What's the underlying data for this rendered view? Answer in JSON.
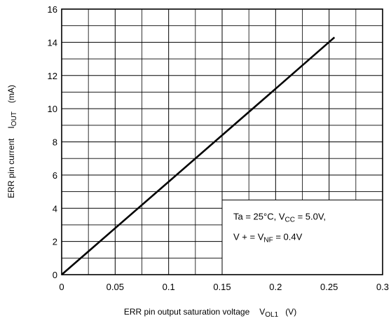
{
  "chart_data": {
    "type": "line",
    "xlabel": {
      "main": "ERR pin output saturation voltage",
      "symbol": "V",
      "subscript": "OL1",
      "unit": "(V)"
    },
    "ylabel": {
      "main": "ERR pin current",
      "symbol": "I",
      "subscript": "OUT",
      "unit": "(mA)"
    },
    "x_ticks": [
      "0",
      "0.05",
      "0.1",
      "0.15",
      "0.2",
      "0.25",
      "0.3"
    ],
    "y_ticks": [
      "0",
      "2",
      "4",
      "6",
      "8",
      "10",
      "12",
      "14",
      "16"
    ],
    "xlim": [
      0,
      0.3
    ],
    "ylim": [
      0,
      16
    ],
    "grid": true,
    "series": [
      {
        "x": [
          0,
          0.05,
          0.1,
          0.15,
          0.2,
          0.255
        ],
        "y": [
          0,
          2.8,
          5.6,
          8.4,
          11.2,
          14.3
        ]
      }
    ],
    "annotation": {
      "line1": [
        {
          "t": "Ta = 25°C,  V"
        },
        {
          "t": "CC",
          "sub": true
        },
        {
          "t": " = 5.0V,"
        }
      ],
      "line2": [
        {
          "t": "V + = V"
        },
        {
          "t": "NF",
          "sub": true
        },
        {
          "t": " = 0.4V"
        }
      ]
    }
  }
}
